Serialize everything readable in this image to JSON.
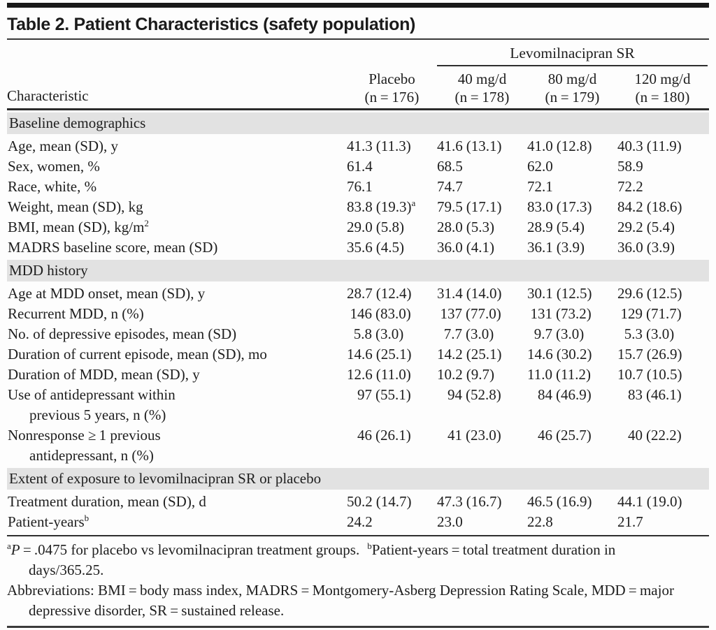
{
  "title": "Table 2. Patient Characteristics (safety population)",
  "header": {
    "characteristic_label": "Characteristic",
    "group_label": "Levomilnacipran SR",
    "columns": [
      {
        "line1": "Placebo",
        "line2": "(n = 176)"
      },
      {
        "line1": "40 mg/d",
        "line2": "(n = 178)"
      },
      {
        "line1": "80 mg/d",
        "line2": "(n = 179)"
      },
      {
        "line1": "120 mg/d",
        "line2": "(n = 180)"
      }
    ]
  },
  "sections": [
    {
      "heading": "Baseline demographics",
      "rows": [
        {
          "label": "Age, mean (SD), y",
          "cells": [
            {
              "m": "41.3",
              "p": "(11.3)"
            },
            {
              "m": "41.6",
              "p": "(13.1)"
            },
            {
              "m": "41.0",
              "p": "(12.8)"
            },
            {
              "m": "40.3",
              "p": "(11.9)"
            }
          ]
        },
        {
          "label": "Sex, women, %",
          "cells": [
            {
              "m": "61.4"
            },
            {
              "m": "68.5"
            },
            {
              "m": "62.0"
            },
            {
              "m": "58.9"
            }
          ]
        },
        {
          "label": "Race, white, %",
          "cells": [
            {
              "m": "76.1"
            },
            {
              "m": "74.7"
            },
            {
              "m": "72.1"
            },
            {
              "m": "72.2"
            }
          ]
        },
        {
          "label": "Weight, mean (SD), kg",
          "cells": [
            {
              "m": "83.8",
              "p": "(19.3)",
              "sup": "a"
            },
            {
              "m": "79.5",
              "p": "(17.1)"
            },
            {
              "m": "83.0",
              "p": "(17.3)"
            },
            {
              "m": "84.2",
              "p": "(18.6)"
            }
          ]
        },
        {
          "label": "BMI, mean (SD), kg/m",
          "label_sup": "2",
          "cells": [
            {
              "m": "29.0",
              "p": "(5.8)"
            },
            {
              "m": "28.0",
              "p": "(5.3)"
            },
            {
              "m": "28.9",
              "p": "(5.4)"
            },
            {
              "m": "29.2",
              "p": "(5.4)"
            }
          ]
        },
        {
          "label": "MADRS baseline score, mean (SD)",
          "cells": [
            {
              "m": "35.6",
              "p": "(4.5)"
            },
            {
              "m": "36.0",
              "p": "(4.1)"
            },
            {
              "m": "36.1",
              "p": "(3.9)"
            },
            {
              "m": "36.0",
              "p": "(3.9)"
            }
          ]
        }
      ]
    },
    {
      "heading": "MDD history",
      "rows": [
        {
          "label": "Age at MDD onset, mean (SD), y",
          "cells": [
            {
              "m": "28.7",
              "p": "(12.4)"
            },
            {
              "m": "31.4",
              "p": "(14.0)"
            },
            {
              "m": "30.1",
              "p": "(12.5)"
            },
            {
              "m": "29.6",
              "p": "(12.5)"
            }
          ]
        },
        {
          "label": "Recurrent MDD, n (%)",
          "cells": [
            {
              "m": "146",
              "p": "(83.0)"
            },
            {
              "m": "137",
              "p": "(77.0)"
            },
            {
              "m": "131",
              "p": "(73.2)"
            },
            {
              "m": "129",
              "p": "(71.7)"
            }
          ]
        },
        {
          "label": "No. of depressive episodes, mean (SD)",
          "cells": [
            {
              "m": "5.8",
              "p": "(3.0)"
            },
            {
              "m": "7.7",
              "p": "(3.0)"
            },
            {
              "m": "9.7",
              "p": "(3.0)"
            },
            {
              "m": "5.3",
              "p": "(3.0)"
            }
          ]
        },
        {
          "label": "Duration of current episode, mean (SD), mo",
          "cells": [
            {
              "m": "14.6",
              "p": "(25.1)"
            },
            {
              "m": "14.2",
              "p": "(25.1)"
            },
            {
              "m": "14.6",
              "p": "(30.2)"
            },
            {
              "m": "15.7",
              "p": "(26.9)"
            }
          ]
        },
        {
          "label": "Duration of MDD, mean (SD), y",
          "cells": [
            {
              "m": "12.6",
              "p": "(11.0)"
            },
            {
              "m": "10.2",
              "p": "(9.7)"
            },
            {
              "m": "11.0",
              "p": "(11.2)"
            },
            {
              "m": "10.7",
              "p": "(10.5)"
            }
          ]
        },
        {
          "label": "Use of antidepressant within",
          "label2": "previous 5 years, n (%)",
          "cells": [
            {
              "m": "97",
              "p": "(55.1)"
            },
            {
              "m": "94",
              "p": "(52.8)"
            },
            {
              "m": "84",
              "p": "(46.9)"
            },
            {
              "m": "83",
              "p": "(46.1)"
            }
          ]
        },
        {
          "label": "Nonresponse ≥ 1 previous",
          "label2": "antidepressant, n (%)",
          "cells": [
            {
              "m": "46",
              "p": "(26.1)"
            },
            {
              "m": "41",
              "p": "(23.0)"
            },
            {
              "m": "46",
              "p": "(25.7)"
            },
            {
              "m": "40",
              "p": "(22.2)"
            }
          ]
        }
      ]
    },
    {
      "heading": "Extent of exposure to levomilnacipran SR or placebo",
      "rows": [
        {
          "label": "Treatment duration, mean (SD), d",
          "cells": [
            {
              "m": "50.2",
              "p": "(14.7)"
            },
            {
              "m": "47.3",
              "p": "(16.7)"
            },
            {
              "m": "46.5",
              "p": "(16.9)"
            },
            {
              "m": "44.1",
              "p": "(19.0)"
            }
          ]
        },
        {
          "label": "Patient-years",
          "label_sup": "b",
          "cells": [
            {
              "m": "24.2"
            },
            {
              "m": "23.0"
            },
            {
              "m": "22.8"
            },
            {
              "m": "21.7"
            }
          ]
        }
      ]
    }
  ],
  "footnotes": {
    "a_marker": "a",
    "a_italic": "P",
    "a_text": " = .0475 for placebo vs levomilnacipran treatment groups.",
    "b_marker": "b",
    "b_text": "Patient-years = total treatment duration in days/365.25.",
    "abbreviations": "Abbreviations: BMI = body mass index, MADRS = Montgomery-Asberg Depression Rating Scale, MDD = major depressive disorder, SR = sustained release."
  },
  "colors": {
    "section_band": "#e2e2e2",
    "text": "#1e1e1e",
    "rule": "#2b2b2b",
    "background": "#fdfdfd"
  }
}
